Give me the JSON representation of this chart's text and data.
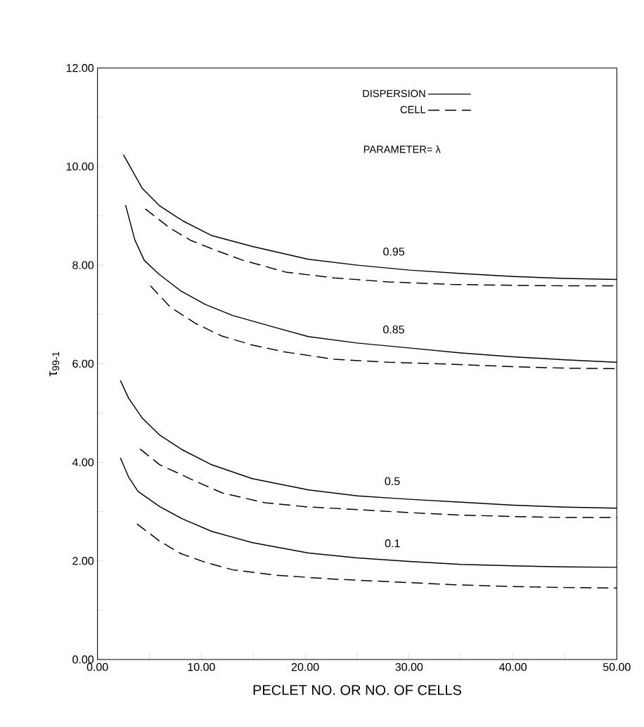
{
  "chart_data": {
    "type": "line",
    "xlabel": "PECLET NO. OR NO. OF CELLS",
    "ylabel": "τ$_{99-1}$",
    "xlim": [
      0,
      50
    ],
    "ylim": [
      0,
      12
    ],
    "xticks": [
      {
        "value": 0,
        "label": "0.00"
      },
      {
        "value": 5,
        "label": null
      },
      {
        "value": 10,
        "label": "10.00"
      },
      {
        "value": 15,
        "label": null
      },
      {
        "value": 20,
        "label": "20.00"
      },
      {
        "value": 25,
        "label": null
      },
      {
        "value": 30,
        "label": "30.00"
      },
      {
        "value": 35,
        "label": null
      },
      {
        "value": 40,
        "label": "40.00"
      },
      {
        "value": 45,
        "label": null
      },
      {
        "value": 50,
        "label": "50.00"
      }
    ],
    "yticks": [
      {
        "value": 0,
        "label": "0.00"
      },
      {
        "value": 1,
        "label": null
      },
      {
        "value": 2,
        "label": "2.00"
      },
      {
        "value": 3,
        "label": null
      },
      {
        "value": 4,
        "label": "4.00"
      },
      {
        "value": 5,
        "label": null
      },
      {
        "value": 6,
        "label": "6.00"
      },
      {
        "value": 7,
        "label": null
      },
      {
        "value": 8,
        "label": "8.00"
      },
      {
        "value": 9,
        "label": null
      },
      {
        "value": 10,
        "label": "10.00"
      },
      {
        "value": 11,
        "label": null
      },
      {
        "value": 12,
        "label": "12.00"
      }
    ],
    "legend": "top right",
    "annotations": [
      "PARAMETER= λ",
      "0.95",
      "0.85",
      "0.5",
      "0.1"
    ],
    "series": [
      {
        "name": "DISPERSION",
        "color": "#000000",
        "line_style": "solid",
        "x": [
          2.5,
          4.3,
          6,
          8.2,
          11,
          14.9,
          20.3,
          25,
          30,
          35,
          40,
          45,
          50
        ],
        "values": [
          10.24,
          9.56,
          9.2,
          8.9,
          8.6,
          8.38,
          8.12,
          8.0,
          7.9,
          7.83,
          7.77,
          7.73,
          7.71
        ]
      },
      {
        "name": "CELL",
        "color": "#000000",
        "line_style": "dashed",
        "x": [
          4.6,
          7,
          9,
          11.4,
          14,
          18.1,
          22.8,
          28,
          34,
          40,
          45,
          50
        ],
        "values": [
          9.14,
          8.75,
          8.5,
          8.3,
          8.1,
          7.86,
          7.74,
          7.66,
          7.61,
          7.59,
          7.58,
          7.58
        ]
      },
      {
        "color": "#000000",
        "line_style": "solid",
        "x": [
          2.7,
          3.6,
          4.5,
          5.9,
          8,
          10.4,
          13,
          17.2,
          20.3,
          25,
          30,
          35,
          40,
          45,
          50
        ],
        "values": [
          9.22,
          8.51,
          8.1,
          7.82,
          7.48,
          7.2,
          6.98,
          6.73,
          6.55,
          6.42,
          6.32,
          6.22,
          6.14,
          6.08,
          6.03
        ]
      },
      {
        "color": "#000000",
        "line_style": "dashed",
        "x": [
          5.1,
          7,
          9.5,
          12,
          14.9,
          18,
          22.8,
          28,
          34,
          40,
          45,
          50
        ],
        "values": [
          7.58,
          7.15,
          6.81,
          6.56,
          6.38,
          6.24,
          6.09,
          6.03,
          5.99,
          5.94,
          5.91,
          5.9
        ]
      },
      {
        "color": "#000000",
        "line_style": "solid",
        "x": [
          2.2,
          3,
          4.3,
          6,
          8.2,
          11,
          14.9,
          20.3,
          25,
          30,
          35,
          40,
          45,
          50
        ],
        "values": [
          5.66,
          5.3,
          4.9,
          4.55,
          4.25,
          3.95,
          3.67,
          3.44,
          3.32,
          3.25,
          3.19,
          3.13,
          3.09,
          3.07
        ]
      },
      {
        "color": "#000000",
        "line_style": "dashed",
        "x": [
          4.1,
          6,
          9.3,
          12,
          16.1,
          20,
          25,
          30,
          35,
          40,
          45,
          50
        ],
        "values": [
          4.27,
          3.95,
          3.63,
          3.38,
          3.18,
          3.1,
          3.04,
          2.98,
          2.93,
          2.9,
          2.88,
          2.88
        ]
      },
      {
        "color": "#000000",
        "line_style": "solid",
        "x": [
          2.2,
          3,
          3.9,
          6,
          8.2,
          11,
          14.9,
          20.3,
          25,
          30,
          35,
          40,
          45,
          50
        ],
        "values": [
          4.09,
          3.7,
          3.41,
          3.1,
          2.85,
          2.6,
          2.37,
          2.16,
          2.06,
          1.99,
          1.93,
          1.9,
          1.88,
          1.87
        ]
      },
      {
        "color": "#000000",
        "line_style": "dashed",
        "x": [
          3.8,
          6,
          8,
          10.4,
          13,
          17.2,
          22.8,
          28,
          34,
          40,
          45,
          50
        ],
        "values": [
          2.75,
          2.4,
          2.15,
          1.97,
          1.82,
          1.71,
          1.63,
          1.58,
          1.52,
          1.48,
          1.46,
          1.45
        ]
      }
    ]
  }
}
